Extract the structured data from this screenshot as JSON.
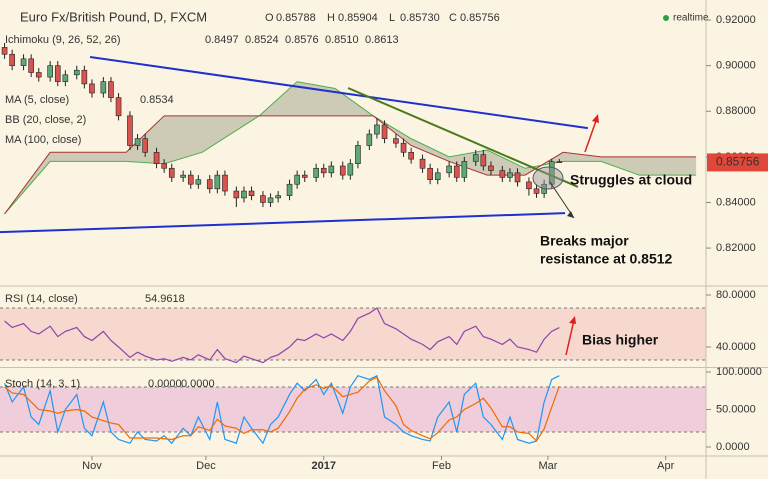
{
  "chart_data": [
    {
      "type": "candlestick",
      "title": "Euro Fx/British Pound, D, FXCM",
      "ohlc": [
        {
          "key": "O",
          "value": "0.85788"
        },
        {
          "key": "H",
          "value": "0.85904"
        },
        {
          "key": "L",
          "value": "0.85730"
        },
        {
          "key": "C",
          "value": "0.85756"
        }
      ],
      "status": "realtime",
      "indicators": [
        {
          "name": "Ichimoku (9, 26, 52, 26)",
          "values": [
            "0.8497",
            "0.8524",
            "0.8576",
            "0.8510",
            "0.8613"
          ],
          "color": "#2e6b2e"
        },
        {
          "name": "MA (5, close)",
          "values": [
            "0.8534"
          ],
          "color": "#1e5fd8"
        },
        {
          "name": "BB (20, close, 2)"
        },
        {
          "name": "MA (100, close)"
        }
      ],
      "x": [
        8,
        10,
        13,
        15,
        17,
        20,
        22,
        24,
        27,
        29,
        31,
        34,
        36,
        38,
        41,
        43,
        45,
        48,
        50,
        52,
        55,
        57,
        59,
        62,
        64,
        66,
        69,
        71,
        73,
        76,
        78,
        80,
        83,
        85,
        87,
        90,
        92,
        94,
        97,
        99,
        101,
        104,
        106,
        108,
        111,
        113,
        115,
        118,
        120,
        122,
        125,
        127,
        129,
        132,
        134,
        136,
        139,
        141,
        143,
        146,
        148,
        150,
        152,
        154
      ],
      "open": [
        0.908,
        0.905,
        0.9,
        0.903,
        0.897,
        0.895,
        0.9,
        0.893,
        0.896,
        0.898,
        0.892,
        0.888,
        0.893,
        0.886,
        0.878,
        0.865,
        0.868,
        0.862,
        0.857,
        0.855,
        0.851,
        0.852,
        0.848,
        0.85,
        0.846,
        0.852,
        0.845,
        0.842,
        0.845,
        0.843,
        0.84,
        0.842,
        0.843,
        0.848,
        0.852,
        0.851,
        0.855,
        0.853,
        0.856,
        0.852,
        0.857,
        0.865,
        0.87,
        0.874,
        0.868,
        0.866,
        0.862,
        0.859,
        0.855,
        0.85,
        0.853,
        0.856,
        0.851,
        0.858,
        0.861,
        0.856,
        0.854,
        0.851,
        0.853,
        0.849,
        0.846,
        0.844,
        0.848,
        0.85788
      ],
      "high": [
        0.91,
        0.907,
        0.905,
        0.905,
        0.899,
        0.902,
        0.902,
        0.898,
        0.9,
        0.9,
        0.894,
        0.895,
        0.895,
        0.888,
        0.88,
        0.87,
        0.87,
        0.864,
        0.859,
        0.857,
        0.854,
        0.854,
        0.852,
        0.852,
        0.854,
        0.854,
        0.847,
        0.847,
        0.847,
        0.845,
        0.844,
        0.845,
        0.85,
        0.854,
        0.854,
        0.857,
        0.857,
        0.858,
        0.858,
        0.859,
        0.867,
        0.872,
        0.877,
        0.876,
        0.87,
        0.868,
        0.864,
        0.861,
        0.857,
        0.855,
        0.858,
        0.858,
        0.86,
        0.863,
        0.863,
        0.858,
        0.856,
        0.855,
        0.855,
        0.851,
        0.848,
        0.85,
        0.859,
        0.85904
      ],
      "low": [
        0.903,
        0.898,
        0.898,
        0.895,
        0.893,
        0.893,
        0.891,
        0.891,
        0.894,
        0.89,
        0.886,
        0.886,
        0.884,
        0.876,
        0.863,
        0.863,
        0.86,
        0.855,
        0.853,
        0.849,
        0.849,
        0.846,
        0.846,
        0.844,
        0.844,
        0.843,
        0.838,
        0.84,
        0.841,
        0.838,
        0.838,
        0.84,
        0.841,
        0.846,
        0.849,
        0.849,
        0.851,
        0.851,
        0.85,
        0.85,
        0.855,
        0.863,
        0.868,
        0.866,
        0.864,
        0.86,
        0.857,
        0.853,
        0.848,
        0.848,
        0.851,
        0.849,
        0.849,
        0.856,
        0.854,
        0.852,
        0.849,
        0.849,
        0.847,
        0.843,
        0.842,
        0.842,
        0.846,
        0.8573
      ],
      "close": [
        0.905,
        0.9,
        0.903,
        0.897,
        0.895,
        0.9,
        0.893,
        0.896,
        0.898,
        0.892,
        0.888,
        0.893,
        0.886,
        0.878,
        0.865,
        0.868,
        0.862,
        0.857,
        0.855,
        0.851,
        0.852,
        0.848,
        0.85,
        0.846,
        0.852,
        0.845,
        0.842,
        0.845,
        0.843,
        0.84,
        0.842,
        0.843,
        0.848,
        0.852,
        0.851,
        0.855,
        0.853,
        0.856,
        0.852,
        0.857,
        0.865,
        0.87,
        0.874,
        0.868,
        0.866,
        0.862,
        0.859,
        0.855,
        0.85,
        0.853,
        0.856,
        0.851,
        0.858,
        0.861,
        0.856,
        0.854,
        0.851,
        0.853,
        0.849,
        0.846,
        0.844,
        0.848,
        0.85788,
        0.85756
      ],
      "up_color": "#5fa777",
      "down_color": "#d9534f",
      "xlim": [
        6.8,
        192.6
      ],
      "ylim": [
        0.8038,
        0.9288
      ],
      "yticks": [
        {
          "value": 0.82,
          "label": "0.82000"
        },
        {
          "value": 0.84,
          "label": "0.84000"
        },
        {
          "value": 0.86,
          "label": "0.86000"
        },
        {
          "value": 0.88,
          "label": "0.88000"
        },
        {
          "value": 0.9,
          "label": "0.90000"
        },
        {
          "value": 0.92,
          "label": "0.92000"
        }
      ],
      "cloud": {
        "x": [
          8,
          20,
          40,
          50,
          60,
          75,
          85,
          95,
          105,
          115,
          125,
          135,
          145,
          155,
          165,
          175,
          190
        ],
        "span_a": [
          0.835,
          0.858,
          0.858,
          0.857,
          0.862,
          0.878,
          0.893,
          0.89,
          0.878,
          0.868,
          0.86,
          0.863,
          0.855,
          0.858,
          0.858,
          0.852,
          0.852
        ],
        "span_b": [
          0.835,
          0.862,
          0.862,
          0.878,
          0.878,
          0.878,
          0.878,
          0.878,
          0.878,
          0.865,
          0.858,
          0.852,
          0.852,
          0.862,
          0.86,
          0.86,
          0.86
        ],
        "color_a": "#4caf50",
        "color_b": "#a83232"
      },
      "trendlines": [
        {
          "color": "#1f2fd0",
          "x": [
            30.5,
            161.5
          ],
          "values": [
            0.9038,
            0.8726
          ]
        },
        {
          "color": "#1f2fd0",
          "x": [
            6.8,
            155.5
          ],
          "values": [
            0.827,
            0.8353
          ]
        },
        {
          "color": "#4a7a1e",
          "x": [
            98.4,
            158.9
          ],
          "values": [
            0.8902,
            0.8468
          ]
        }
      ],
      "last_price": 0.85756,
      "annotations": [
        "Struggles at cloud",
        "Breaks major",
        "resistance at 0.8512"
      ]
    },
    {
      "type": "line",
      "title": "RSI (14, close)",
      "value_label": "54.9618",
      "x": [
        8,
        10,
        13,
        15,
        17,
        20,
        22,
        24,
        27,
        29,
        31,
        34,
        36,
        38,
        41,
        43,
        45,
        48,
        50,
        52,
        55,
        57,
        59,
        62,
        64,
        66,
        69,
        71,
        73,
        76,
        78,
        80,
        83,
        85,
        87,
        90,
        92,
        94,
        97,
        99,
        101,
        104,
        106,
        108,
        111,
        113,
        115,
        118,
        120,
        122,
        125,
        127,
        129,
        132,
        134,
        136,
        139,
        141,
        143,
        146,
        148,
        150,
        152,
        154
      ],
      "series": [
        {
          "name": "RSI",
          "color": "#8e44ad",
          "values": [
            60,
            55,
            58,
            52,
            50,
            56,
            48,
            52,
            55,
            48,
            45,
            52,
            45,
            40,
            32,
            36,
            33,
            30,
            31,
            29,
            32,
            30,
            34,
            30,
            38,
            31,
            28,
            33,
            31,
            28,
            32,
            34,
            40,
            46,
            45,
            50,
            47,
            50,
            45,
            52,
            62,
            66,
            70,
            58,
            54,
            50,
            46,
            42,
            38,
            44,
            48,
            42,
            52,
            56,
            48,
            46,
            42,
            46,
            40,
            38,
            36,
            46,
            52,
            54.96
          ]
        }
      ],
      "bands": [
        30,
        70
      ],
      "band_color": "#f2c4c0",
      "xlim": [
        6.8,
        192.6
      ],
      "ylim": [
        24.6,
        86.15
      ],
      "yticks": [
        {
          "value": 40,
          "label": "40.0000"
        },
        {
          "value": 80,
          "label": "80.0000"
        }
      ],
      "annotations": [
        "Bias higher"
      ]
    },
    {
      "type": "line",
      "title": "Stoch (14, 3, 1)",
      "x": [
        8,
        10,
        13,
        15,
        17,
        20,
        22,
        24,
        27,
        29,
        31,
        34,
        36,
        38,
        41,
        43,
        45,
        48,
        50,
        52,
        55,
        57,
        59,
        62,
        64,
        66,
        69,
        71,
        73,
        76,
        78,
        80,
        83,
        85,
        87,
        90,
        92,
        94,
        97,
        99,
        101,
        104,
        106,
        108,
        111,
        113,
        115,
        118,
        120,
        122,
        125,
        127,
        129,
        132,
        134,
        136,
        139,
        141,
        143,
        146,
        148,
        150,
        152,
        154
      ],
      "series": [
        {
          "name": "0.0000",
          "color": "#2196f3",
          "values": [
            85,
            60,
            80,
            40,
            30,
            75,
            20,
            50,
            70,
            25,
            15,
            60,
            20,
            10,
            5,
            20,
            10,
            8,
            15,
            5,
            25,
            15,
            40,
            10,
            60,
            10,
            5,
            40,
            25,
            5,
            30,
            40,
            70,
            85,
            75,
            90,
            70,
            85,
            45,
            80,
            95,
            90,
            95,
            40,
            30,
            20,
            15,
            10,
            8,
            40,
            60,
            20,
            70,
            85,
            40,
            30,
            10,
            40,
            10,
            5,
            8,
            60,
            90,
            95
          ]
        },
        {
          "name": "0.0000",
          "color": "#ef6c00",
          "values": [
            80,
            72,
            70,
            60,
            50,
            48,
            45,
            48,
            50,
            48,
            40,
            35,
            32,
            30,
            12,
            12,
            12,
            12,
            11,
            10,
            15,
            15,
            27,
            22,
            37,
            28,
            25,
            18,
            23,
            23,
            20,
            25,
            47,
            65,
            77,
            83,
            78,
            82,
            67,
            70,
            73,
            88,
            93,
            75,
            55,
            30,
            22,
            15,
            11,
            19,
            36,
            40,
            50,
            58,
            65,
            52,
            27,
            27,
            20,
            18,
            8,
            24,
            53,
            81
          ]
        }
      ],
      "bands": [
        20,
        80
      ],
      "band_color": "#e6b3d3",
      "xlim": [
        6.8,
        192.6
      ],
      "ylim": [
        -10.7,
        105.3
      ],
      "yticks": [
        {
          "value": 0,
          "label": "0.0000"
        },
        {
          "value": 50,
          "label": "50.0000"
        },
        {
          "value": 100,
          "label": "100.0000"
        }
      ],
      "xticks": [
        {
          "value": 31,
          "label": "Nov"
        },
        {
          "value": 61,
          "label": "Dec"
        },
        {
          "value": 92,
          "label": "2017"
        },
        {
          "value": 123,
          "label": "Feb"
        },
        {
          "value": 151,
          "label": "Mar"
        },
        {
          "value": 182,
          "label": "Apr"
        }
      ]
    }
  ]
}
